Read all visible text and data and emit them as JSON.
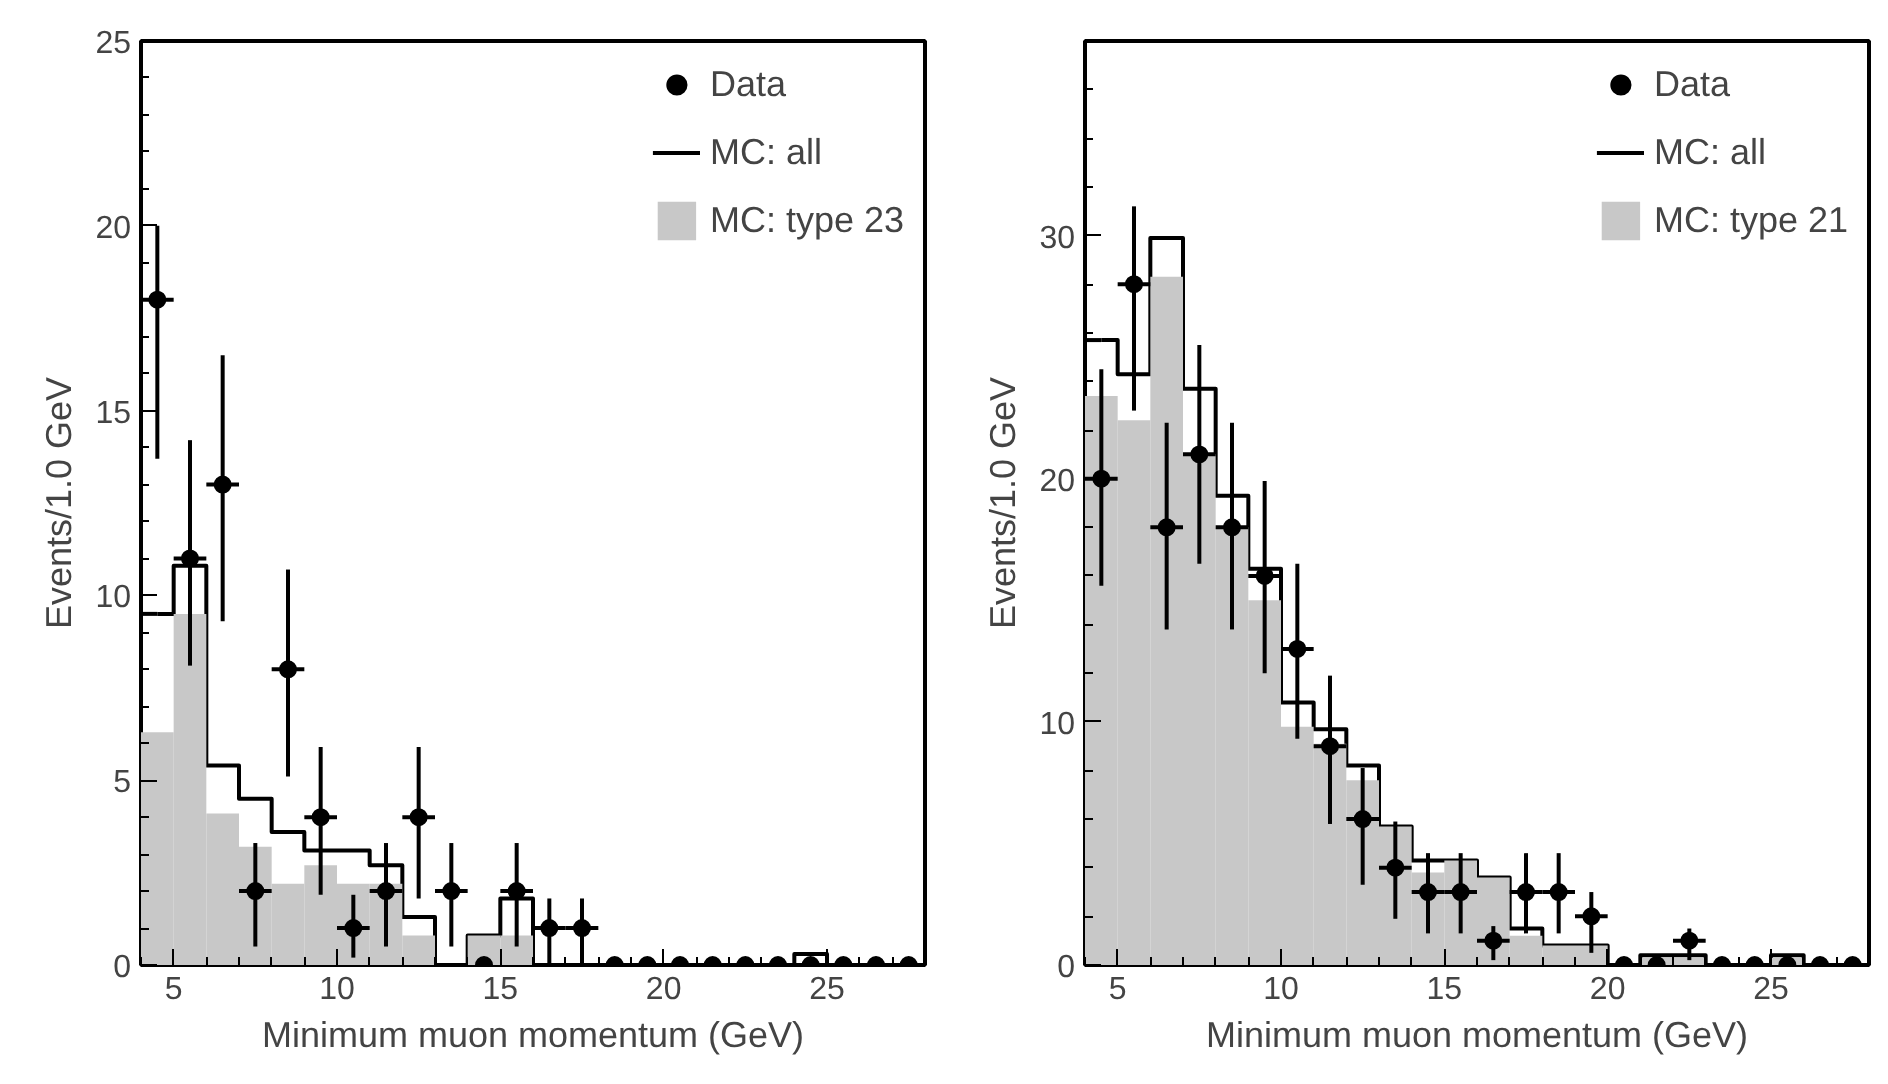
{
  "chart_data": [
    {
      "type": "histogram",
      "xlabel": "Minimum muon momentum (GeV)",
      "ylabel": "Events/1.0 GeV",
      "xlim": [
        4,
        28
      ],
      "ylim": [
        0,
        25
      ],
      "xticks": [
        5,
        10,
        15,
        20,
        25
      ],
      "yticks": [
        0,
        5,
        10,
        15,
        20,
        25
      ],
      "grid": false,
      "legend": "top right",
      "bins": [
        4,
        5,
        6,
        7,
        8,
        9,
        10,
        11,
        12,
        13,
        14,
        15,
        16,
        17,
        18,
        19,
        20,
        21,
        22,
        23,
        24,
        25,
        26,
        27,
        28
      ],
      "series": [
        {
          "name": "MC: all",
          "type": "step",
          "color": "#000000",
          "x": [
            4.5,
            5.5,
            6.5,
            7.5,
            8.5,
            9.5,
            10.5,
            11.5,
            12.5,
            13.5,
            14.5,
            15.5,
            16.5,
            17.5,
            18.5,
            19.5,
            20.5,
            21.5,
            22.5,
            23.5,
            24.5,
            25.5,
            26.5,
            27.5
          ],
          "values": [
            9.5,
            10.8,
            5.4,
            4.5,
            3.6,
            3.1,
            3.1,
            2.7,
            1.3,
            0,
            0.8,
            1.8,
            0,
            0,
            0,
            0,
            0,
            0,
            0,
            0,
            0.3,
            0,
            0,
            0
          ]
        },
        {
          "name": "MC: type 23",
          "color": "#c8c8c8",
          "values": [
            6.3,
            9.5,
            4.1,
            3.2,
            2.2,
            2.7,
            2.2,
            2.2,
            0.8,
            0,
            0.8,
            0.8,
            0,
            0,
            0,
            0,
            0,
            0,
            0,
            0,
            0,
            0,
            0,
            0
          ]
        },
        {
          "name": "Data",
          "type": "scatter",
          "color": "#000000",
          "marker": "circle",
          "x": [
            4.5,
            5.5,
            6.5,
            7.5,
            8.5,
            9.5,
            10.5,
            11.5,
            12.5,
            13.5,
            14.5,
            15.5,
            16.5,
            17.5,
            18.5,
            19.5,
            20.5,
            21.5,
            22.5,
            23.5,
            24.5,
            25.5,
            26.5,
            27.5
          ],
          "values": [
            18,
            11,
            13,
            2,
            8,
            4,
            1,
            2,
            4,
            2,
            0,
            2,
            1,
            1,
            0,
            0,
            0,
            0,
            0,
            0,
            0,
            0,
            0,
            0
          ],
          "errors": [
            [
              13.7,
              20
            ],
            [
              8.1,
              14.2
            ],
            [
              9.3,
              16.5
            ],
            [
              0.5,
              3.3
            ],
            [
              5.1,
              10.7
            ],
            [
              1.9,
              5.9
            ],
            [
              0.2,
              1.9
            ],
            [
              0.5,
              3.3
            ],
            [
              1.8,
              5.9
            ],
            [
              0.5,
              3.3
            ],
            null,
            [
              0.5,
              3.3
            ],
            [
              0,
              1.8
            ],
            [
              0,
              1.8
            ],
            null,
            null,
            null,
            null,
            null,
            null,
            null,
            null,
            null,
            null
          ],
          "xerrors": [
            0.5,
            0.5,
            0.5,
            0.5,
            0.5,
            0.5,
            0.5,
            0.5,
            0.5,
            0.5,
            null,
            0.5,
            0.5,
            0.5,
            null,
            null,
            null,
            null,
            null,
            null,
            null,
            null,
            null,
            null
          ]
        }
      ]
    },
    {
      "type": "histogram",
      "xlabel": "Minimum muon momentum (GeV)",
      "ylabel": "Events/1.0 GeV",
      "xlim": [
        4,
        28
      ],
      "ylim": [
        0,
        38
      ],
      "xticks": [
        5,
        10,
        15,
        20,
        25
      ],
      "yticks": [
        0,
        10,
        20,
        30
      ],
      "grid": false,
      "legend": "top right",
      "bins": [
        4,
        5,
        6,
        7,
        8,
        9,
        10,
        11,
        12,
        13,
        14,
        15,
        16,
        17,
        18,
        19,
        20,
        21,
        22,
        23,
        24,
        25,
        26,
        27,
        28
      ],
      "series": [
        {
          "name": "MC: all",
          "type": "step",
          "color": "#000000",
          "x": [
            4.5,
            5.5,
            6.5,
            7.5,
            8.5,
            9.5,
            10.5,
            11.5,
            12.5,
            13.5,
            14.5,
            15.5,
            16.5,
            17.5,
            18.5,
            19.5,
            20.5,
            21.5,
            22.5,
            23.5,
            24.5,
            25.5,
            26.5,
            27.5
          ],
          "values": [
            25.7,
            24.3,
            29.9,
            23.7,
            19.3,
            16.3,
            10.8,
            9.7,
            8.2,
            5.7,
            4.3,
            4.3,
            3.6,
            1.5,
            0.8,
            0.8,
            0,
            0.4,
            0.4,
            0,
            0,
            0.4,
            0,
            0
          ]
        },
        {
          "name": "MC: type 21",
          "color": "#c8c8c8",
          "values": [
            23.4,
            22.4,
            28.3,
            21,
            18,
            15,
            9.8,
            9.1,
            7.6,
            5.7,
            3.8,
            4.3,
            3.6,
            1.2,
            0.8,
            0.8,
            0,
            0.3,
            0.3,
            0,
            0,
            0.3,
            0,
            0
          ]
        },
        {
          "name": "Data",
          "type": "scatter",
          "color": "#000000",
          "marker": "circle",
          "x": [
            4.5,
            5.5,
            6.5,
            7.5,
            8.5,
            9.5,
            10.5,
            11.5,
            12.5,
            13.5,
            14.5,
            15.5,
            16.5,
            17.5,
            18.5,
            19.5,
            20.5,
            21.5,
            22.5,
            23.5,
            24.5,
            25.5,
            26.5,
            27.5
          ],
          "values": [
            20,
            28,
            18,
            21,
            18,
            16,
            13,
            9,
            6,
            4,
            3,
            3,
            1,
            3,
            3,
            2,
            0,
            0,
            1,
            0,
            0,
            0,
            0,
            0
          ],
          "errors": [
            [
              15.6,
              24.5
            ],
            [
              22.8,
              31.2
            ],
            [
              13.8,
              22.3
            ],
            [
              16.5,
              25.5
            ],
            [
              13.8,
              22.3
            ],
            [
              12,
              19.9
            ],
            [
              9.3,
              16.5
            ],
            [
              5.8,
              11.9
            ],
            [
              3.3,
              8.1
            ],
            [
              1.9,
              5.9
            ],
            [
              1.3,
              4.6
            ],
            [
              1.3,
              4.6
            ],
            [
              0.2,
              1.6
            ],
            [
              1.3,
              4.6
            ],
            [
              1.3,
              4.6
            ],
            [
              0.5,
              3
            ],
            null,
            null,
            [
              0.2,
              1.5
            ],
            null,
            null,
            null,
            null,
            null
          ],
          "xerrors": [
            0.5,
            0.5,
            0.5,
            0.5,
            0.5,
            0.5,
            0.5,
            0.5,
            0.5,
            0.5,
            0.5,
            0.5,
            0.5,
            0.5,
            0.5,
            0.5,
            null,
            null,
            0.5,
            null,
            null,
            null,
            null,
            null
          ]
        }
      ]
    }
  ]
}
